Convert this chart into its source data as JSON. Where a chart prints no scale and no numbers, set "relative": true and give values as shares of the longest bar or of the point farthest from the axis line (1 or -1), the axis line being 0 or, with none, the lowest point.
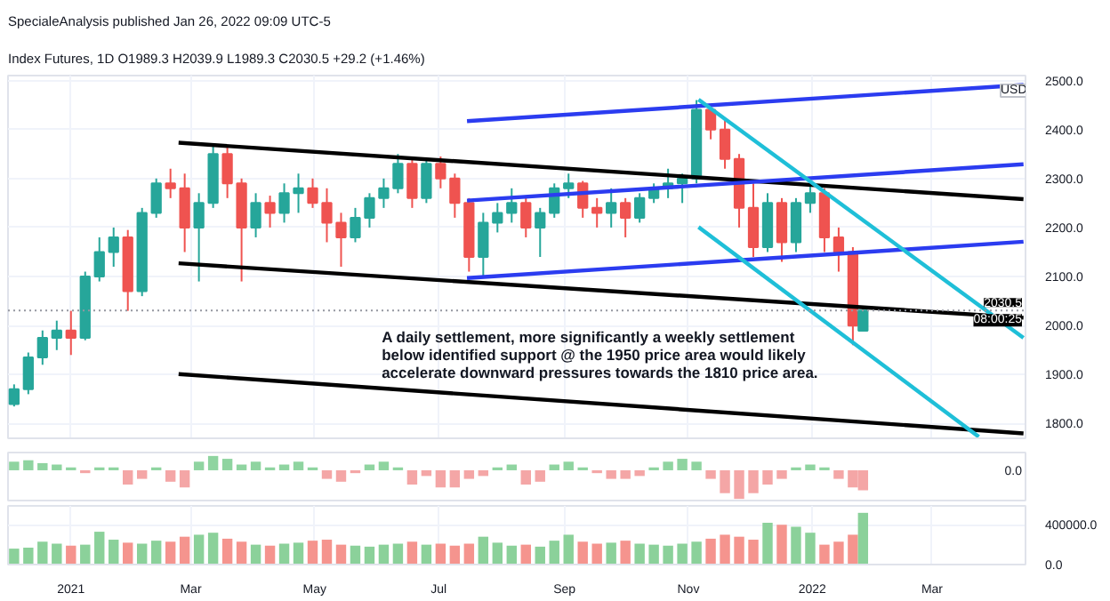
{
  "chart_data": [
    {
      "type": "candlestick",
      "title": "SpecialeAnalysis published Jan 26, 2022 09:09 UTC-5",
      "subtitle": "Index Futures, 1D  O1989.3 H2039.9 L1989.3 C2030.5 +29.2 (+1.46%)",
      "x": [
        "2020-12-04",
        "2020-12-11",
        "2020-12-18",
        "2020-12-25",
        "2021-01-01",
        "2021-01-08",
        "2021-01-15",
        "2021-01-22",
        "2021-01-29",
        "2021-02-05",
        "2021-02-12",
        "2021-02-19",
        "2021-02-26",
        "2021-03-05",
        "2021-03-12",
        "2021-03-19",
        "2021-03-26",
        "2021-04-02",
        "2021-04-09",
        "2021-04-16",
        "2021-04-23",
        "2021-04-30",
        "2021-05-07",
        "2021-05-14",
        "2021-05-21",
        "2021-05-28",
        "2021-06-04",
        "2021-06-11",
        "2021-06-18",
        "2021-06-25",
        "2021-07-02",
        "2021-07-09",
        "2021-07-16",
        "2021-07-23",
        "2021-07-30",
        "2021-08-06",
        "2021-08-13",
        "2021-08-20",
        "2021-08-27",
        "2021-09-03",
        "2021-09-10",
        "2021-09-17",
        "2021-09-24",
        "2021-10-01",
        "2021-10-08",
        "2021-10-15",
        "2021-10-22",
        "2021-10-29",
        "2021-11-05",
        "2021-11-12",
        "2021-11-19",
        "2021-11-26",
        "2021-12-03",
        "2021-12-10",
        "2021-12-17",
        "2021-12-24",
        "2021-12-31",
        "2022-01-07",
        "2022-01-14",
        "2022-01-21",
        "2022-01-26"
      ],
      "ohlc": [
        [
          1840,
          1880,
          1835,
          1870
        ],
        [
          1870,
          1945,
          1860,
          1935
        ],
        [
          1935,
          1990,
          1920,
          1975
        ],
        [
          1975,
          2010,
          1950,
          1990
        ],
        [
          1990,
          2030,
          1940,
          1975
        ],
        [
          1975,
          2110,
          1970,
          2100
        ],
        [
          2100,
          2180,
          2090,
          2150
        ],
        [
          2150,
          2200,
          2120,
          2180
        ],
        [
          2180,
          2195,
          2030,
          2070
        ],
        [
          2070,
          2240,
          2060,
          2230
        ],
        [
          2230,
          2300,
          2220,
          2290
        ],
        [
          2290,
          2320,
          2260,
          2280
        ],
        [
          2280,
          2310,
          2150,
          2200
        ],
        [
          2200,
          2270,
          2090,
          2250
        ],
        [
          2250,
          2370,
          2240,
          2350
        ],
        [
          2350,
          2365,
          2260,
          2290
        ],
        [
          2290,
          2300,
          2090,
          2200
        ],
        [
          2200,
          2270,
          2180,
          2250
        ],
        [
          2250,
          2265,
          2200,
          2230
        ],
        [
          2230,
          2290,
          2210,
          2270
        ],
        [
          2270,
          2310,
          2230,
          2280
        ],
        [
          2280,
          2300,
          2240,
          2250
        ],
        [
          2250,
          2280,
          2170,
          2210
        ],
        [
          2210,
          2230,
          2120,
          2180
        ],
        [
          2180,
          2240,
          2170,
          2220
        ],
        [
          2220,
          2270,
          2200,
          2260
        ],
        [
          2260,
          2300,
          2240,
          2280
        ],
        [
          2280,
          2350,
          2270,
          2330
        ],
        [
          2330,
          2345,
          2240,
          2260
        ],
        [
          2260,
          2340,
          2250,
          2330
        ],
        [
          2330,
          2345,
          2280,
          2300
        ],
        [
          2300,
          2310,
          2220,
          2250
        ],
        [
          2250,
          2260,
          2110,
          2140
        ],
        [
          2140,
          2230,
          2100,
          2210
        ],
        [
          2210,
          2250,
          2190,
          2230
        ],
        [
          2230,
          2280,
          2210,
          2250
        ],
        [
          2250,
          2265,
          2180,
          2200
        ],
        [
          2200,
          2240,
          2140,
          2230
        ],
        [
          2230,
          2290,
          2220,
          2280
        ],
        [
          2280,
          2310,
          2260,
          2290
        ],
        [
          2290,
          2295,
          2220,
          2240
        ],
        [
          2240,
          2260,
          2200,
          2230
        ],
        [
          2230,
          2280,
          2200,
          2250
        ],
        [
          2250,
          2260,
          2180,
          2220
        ],
        [
          2220,
          2270,
          2210,
          2260
        ],
        [
          2260,
          2290,
          2250,
          2280
        ],
        [
          2280,
          2320,
          2260,
          2290
        ],
        [
          2290,
          2310,
          2250,
          2300
        ],
        [
          2300,
          2460,
          2290,
          2440
        ],
        [
          2440,
          2450,
          2380,
          2400
        ],
        [
          2400,
          2420,
          2320,
          2340
        ],
        [
          2340,
          2350,
          2200,
          2240
        ],
        [
          2240,
          2290,
          2140,
          2160
        ],
        [
          2160,
          2270,
          2150,
          2250
        ],
        [
          2250,
          2260,
          2130,
          2170
        ],
        [
          2170,
          2260,
          2150,
          2250
        ],
        [
          2250,
          2290,
          2230,
          2270
        ],
        [
          2270,
          2280,
          2150,
          2180
        ],
        [
          2180,
          2200,
          2110,
          2150
        ],
        [
          2150,
          2160,
          1960,
          2000
        ],
        [
          1989.3,
          2039.9,
          1989.3,
          2030.5
        ]
      ],
      "colors": [
        "#26a69a",
        "#26a69a",
        "#26a69a",
        "#26a69a",
        "#ef5350",
        "#26a69a",
        "#26a69a",
        "#26a69a",
        "#ef5350",
        "#26a69a",
        "#26a69a",
        "#ef5350",
        "#ef5350",
        "#26a69a",
        "#26a69a",
        "#ef5350",
        "#ef5350",
        "#26a69a",
        "#ef5350",
        "#26a69a",
        "#26a69a",
        "#ef5350",
        "#ef5350",
        "#ef5350",
        "#26a69a",
        "#26a69a",
        "#26a69a",
        "#26a69a",
        "#ef5350",
        "#26a69a",
        "#ef5350",
        "#ef5350",
        "#ef5350",
        "#26a69a",
        "#26a69a",
        "#26a69a",
        "#ef5350",
        "#26a69a",
        "#26a69a",
        "#26a69a",
        "#ef5350",
        "#ef5350",
        "#26a69a",
        "#ef5350",
        "#26a69a",
        "#26a69a",
        "#26a69a",
        "#26a69a",
        "#26a69a",
        "#ef5350",
        "#ef5350",
        "#ef5350",
        "#ef5350",
        "#26a69a",
        "#ef5350",
        "#26a69a",
        "#26a69a",
        "#ef5350",
        "#ef5350",
        "#ef5350",
        "#26a69a"
      ],
      "series": [
        {
          "type": "line",
          "color": "#000000",
          "x": [
            "2021-02-23",
            "2022-04-15"
          ],
          "values": [
            2373,
            2258
          ]
        },
        {
          "type": "line",
          "color": "#000000",
          "x": [
            "2021-02-23",
            "2022-04-15"
          ],
          "values": [
            2127,
            2016
          ]
        },
        {
          "type": "line",
          "color": "#000000",
          "x": [
            "2021-02-23",
            "2022-04-15"
          ],
          "values": [
            1901,
            1780
          ]
        },
        {
          "type": "line",
          "color": "#2b3cf0",
          "x": [
            "2021-07-15",
            "2022-04-15"
          ],
          "values": [
            2417,
            2491
          ]
        },
        {
          "type": "line",
          "color": "#2b3cf0",
          "x": [
            "2021-07-15",
            "2022-04-15"
          ],
          "values": [
            2255,
            2329
          ]
        },
        {
          "type": "line",
          "color": "#2b3cf0",
          "x": [
            "2021-07-15",
            "2022-04-15"
          ],
          "values": [
            2097,
            2171
          ]
        },
        {
          "type": "line",
          "color": "#1fbfd8",
          "x": [
            "2021-11-06",
            "2022-04-15"
          ],
          "values": [
            2461,
            1975
          ]
        },
        {
          "type": "line",
          "color": "#1fbfd8",
          "x": [
            "2021-11-06",
            "2022-03-24"
          ],
          "values": [
            2201,
            1773
          ]
        }
      ],
      "ref_lines": [
        {
          "axis": "y",
          "value": 2030.5,
          "label": "2030.5",
          "color": "#9598a1",
          "line_style": "dotted"
        }
      ],
      "annotations": [
        "A daily settlement, more significantly a weekly settlement\nbelow identified support @ the 1950 price area would likely\naccelerate downward pressures towards the 1810 price area.",
        "08:00:25",
        "USD"
      ],
      "xlim": [
        "2020-12-01",
        "2022-04-16"
      ],
      "xticks": [
        {
          "value": "2021-01-01",
          "label": null
        },
        {
          "value": "2021-03-01",
          "label": null
        },
        {
          "value": "2021-05-01",
          "label": null
        },
        {
          "value": "2021-07-01",
          "label": null
        },
        {
          "value": "2021-09-01",
          "label": null
        },
        {
          "value": "2021-11-01",
          "label": null
        },
        {
          "value": "2022-01-01",
          "label": null
        },
        {
          "value": "2022-03-01",
          "label": null
        }
      ],
      "ylim": [
        1770,
        2510
      ],
      "yticks": [
        {
          "value": 1800,
          "label": "1800.0"
        },
        {
          "value": 1900,
          "label": "1900.0"
        },
        {
          "value": 2000,
          "label": "2000.0"
        },
        {
          "value": 2100,
          "label": "2100.0"
        },
        {
          "value": 2200,
          "label": "2200.0"
        },
        {
          "value": 2300,
          "label": "2300.0"
        },
        {
          "value": 2400,
          "label": "2400.0"
        },
        {
          "value": 2500,
          "label": "2500.0"
        }
      ],
      "grid": true,
      "tick_labels": "y"
    },
    {
      "type": "bar",
      "relative": true,
      "annotations": [
        "0.0"
      ],
      "tick_labels": false,
      "grid": true,
      "x": [
        "2020-12-04",
        "2020-12-11",
        "2020-12-18",
        "2020-12-25",
        "2021-01-01",
        "2021-01-08",
        "2021-01-15",
        "2021-01-22",
        "2021-01-29",
        "2021-02-05",
        "2021-02-12",
        "2021-02-19",
        "2021-02-26",
        "2021-03-05",
        "2021-03-12",
        "2021-03-19",
        "2021-03-26",
        "2021-04-02",
        "2021-04-09",
        "2021-04-16",
        "2021-04-23",
        "2021-04-30",
        "2021-05-07",
        "2021-05-14",
        "2021-05-21",
        "2021-05-28",
        "2021-06-04",
        "2021-06-11",
        "2021-06-18",
        "2021-06-25",
        "2021-07-02",
        "2021-07-09",
        "2021-07-16",
        "2021-07-23",
        "2021-07-30",
        "2021-08-06",
        "2021-08-13",
        "2021-08-20",
        "2021-08-27",
        "2021-09-03",
        "2021-09-10",
        "2021-09-17",
        "2021-09-24",
        "2021-10-01",
        "2021-10-08",
        "2021-10-15",
        "2021-10-22",
        "2021-10-29",
        "2021-11-05",
        "2021-11-12",
        "2021-11-19",
        "2021-11-26",
        "2021-12-03",
        "2021-12-10",
        "2021-12-17",
        "2021-12-24",
        "2021-12-31",
        "2022-01-07",
        "2022-01-14",
        "2022-01-21",
        "2022-01-26"
      ],
      "values": [
        0.3,
        0.35,
        0.25,
        0.2,
        0.1,
        -0.1,
        0.1,
        0.1,
        -0.5,
        -0.3,
        0.1,
        -0.4,
        -0.6,
        0.3,
        0.5,
        0.4,
        0.2,
        0.3,
        0.1,
        0.2,
        0.3,
        0.1,
        -0.3,
        -0.4,
        -0.1,
        0.2,
        0.3,
        0.1,
        -0.5,
        -0.2,
        -0.6,
        -0.6,
        -0.3,
        -0.2,
        0.1,
        0.2,
        -0.5,
        -0.4,
        0.2,
        0.3,
        0.1,
        -0.1,
        -0.3,
        -0.3,
        -0.2,
        0.1,
        0.3,
        0.4,
        0.3,
        -0.3,
        -0.8,
        -1,
        -0.8,
        -0.5,
        -0.3,
        0.1,
        0.2,
        0.1,
        -0.3,
        -0.6,
        -0.7
      ],
      "colors": [
        "#8fd4a0",
        "#8fd4a0",
        "#8fd4a0",
        "#8fd4a0",
        "#8fd4a0",
        "#f4a6a6",
        "#8fd4a0",
        "#8fd4a0",
        "#f4a6a6",
        "#f4a6a6",
        "#8fd4a0",
        "#f4a6a6",
        "#f4a6a6",
        "#8fd4a0",
        "#8fd4a0",
        "#8fd4a0",
        "#8fd4a0",
        "#8fd4a0",
        "#8fd4a0",
        "#8fd4a0",
        "#8fd4a0",
        "#8fd4a0",
        "#f4a6a6",
        "#f4a6a6",
        "#f4a6a6",
        "#8fd4a0",
        "#8fd4a0",
        "#8fd4a0",
        "#f4a6a6",
        "#f4a6a6",
        "#f4a6a6",
        "#f4a6a6",
        "#f4a6a6",
        "#f4a6a6",
        "#8fd4a0",
        "#8fd4a0",
        "#f4a6a6",
        "#f4a6a6",
        "#8fd4a0",
        "#8fd4a0",
        "#8fd4a0",
        "#f4a6a6",
        "#f4a6a6",
        "#f4a6a6",
        "#f4a6a6",
        "#8fd4a0",
        "#8fd4a0",
        "#8fd4a0",
        "#8fd4a0",
        "#f4a6a6",
        "#f4a6a6",
        "#f4a6a6",
        "#f4a6a6",
        "#f4a6a6",
        "#f4a6a6",
        "#8fd4a0",
        "#8fd4a0",
        "#8fd4a0",
        "#f4a6a6",
        "#f4a6a6",
        "#f4a6a6"
      ],
      "xlim": [
        "2020-12-01",
        "2022-04-16"
      ]
    },
    {
      "type": "bar",
      "grid": true,
      "x": [
        "2020-12-04",
        "2020-12-11",
        "2020-12-18",
        "2020-12-25",
        "2021-01-01",
        "2021-01-08",
        "2021-01-15",
        "2021-01-22",
        "2021-01-29",
        "2021-02-05",
        "2021-02-12",
        "2021-02-19",
        "2021-02-26",
        "2021-03-05",
        "2021-03-12",
        "2021-03-19",
        "2021-03-26",
        "2021-04-02",
        "2021-04-09",
        "2021-04-16",
        "2021-04-23",
        "2021-04-30",
        "2021-05-07",
        "2021-05-14",
        "2021-05-21",
        "2021-05-28",
        "2021-06-04",
        "2021-06-11",
        "2021-06-18",
        "2021-06-25",
        "2021-07-02",
        "2021-07-09",
        "2021-07-16",
        "2021-07-23",
        "2021-07-30",
        "2021-08-06",
        "2021-08-13",
        "2021-08-20",
        "2021-08-27",
        "2021-09-03",
        "2021-09-10",
        "2021-09-17",
        "2021-09-24",
        "2021-10-01",
        "2021-10-08",
        "2021-10-15",
        "2021-10-22",
        "2021-10-29",
        "2021-11-05",
        "2021-11-12",
        "2021-11-19",
        "2021-11-26",
        "2021-12-03",
        "2021-12-10",
        "2021-12-17",
        "2021-12-24",
        "2021-12-31",
        "2022-01-07",
        "2022-01-14",
        "2022-01-21",
        "2022-01-26"
      ],
      "values": [
        160000,
        170000,
        230000,
        210000,
        190000,
        200000,
        330000,
        250000,
        220000,
        210000,
        240000,
        230000,
        280000,
        300000,
        320000,
        260000,
        230000,
        200000,
        190000,
        210000,
        220000,
        240000,
        250000,
        200000,
        190000,
        180000,
        200000,
        210000,
        230000,
        200000,
        210000,
        190000,
        210000,
        280000,
        220000,
        190000,
        200000,
        180000,
        240000,
        300000,
        230000,
        210000,
        220000,
        240000,
        210000,
        200000,
        190000,
        210000,
        230000,
        260000,
        300000,
        280000,
        250000,
        420000,
        400000,
        380000,
        320000,
        200000,
        230000,
        300000,
        520000
      ],
      "colors": [
        "#8bd19a",
        "#8bd19a",
        "#8bd19a",
        "#8bd19a",
        "#f5948e",
        "#8bd19a",
        "#8bd19a",
        "#8bd19a",
        "#f5948e",
        "#8bd19a",
        "#8bd19a",
        "#f5948e",
        "#f5948e",
        "#8bd19a",
        "#8bd19a",
        "#f5948e",
        "#f5948e",
        "#8bd19a",
        "#f5948e",
        "#8bd19a",
        "#8bd19a",
        "#f5948e",
        "#f5948e",
        "#f5948e",
        "#8bd19a",
        "#8bd19a",
        "#8bd19a",
        "#8bd19a",
        "#f5948e",
        "#8bd19a",
        "#f5948e",
        "#f5948e",
        "#f5948e",
        "#8bd19a",
        "#8bd19a",
        "#8bd19a",
        "#f5948e",
        "#8bd19a",
        "#8bd19a",
        "#8bd19a",
        "#f5948e",
        "#f5948e",
        "#8bd19a",
        "#f5948e",
        "#8bd19a",
        "#8bd19a",
        "#8bd19a",
        "#8bd19a",
        "#8bd19a",
        "#f5948e",
        "#f5948e",
        "#f5948e",
        "#f5948e",
        "#8bd19a",
        "#f5948e",
        "#8bd19a",
        "#8bd19a",
        "#f5948e",
        "#f5948e",
        "#f5948e",
        "#8bd19a"
      ],
      "xlim": [
        "2020-12-01",
        "2022-04-16"
      ],
      "xticks": [
        {
          "value": "2021-01-01",
          "label": "2021"
        },
        {
          "value": "2021-03-01",
          "label": "Mar"
        },
        {
          "value": "2021-05-01",
          "label": "May"
        },
        {
          "value": "2021-07-01",
          "label": "Jul"
        },
        {
          "value": "2021-09-01",
          "label": "Sep"
        },
        {
          "value": "2021-11-01",
          "label": "Nov"
        },
        {
          "value": "2022-01-01",
          "label": "2022"
        },
        {
          "value": "2022-03-01",
          "label": "Mar"
        }
      ],
      "ylim": [
        0,
        590000
      ],
      "yticks": [
        {
          "value": 0,
          "label": "0.0"
        },
        {
          "value": 400000,
          "label": "400000.0"
        }
      ]
    }
  ]
}
